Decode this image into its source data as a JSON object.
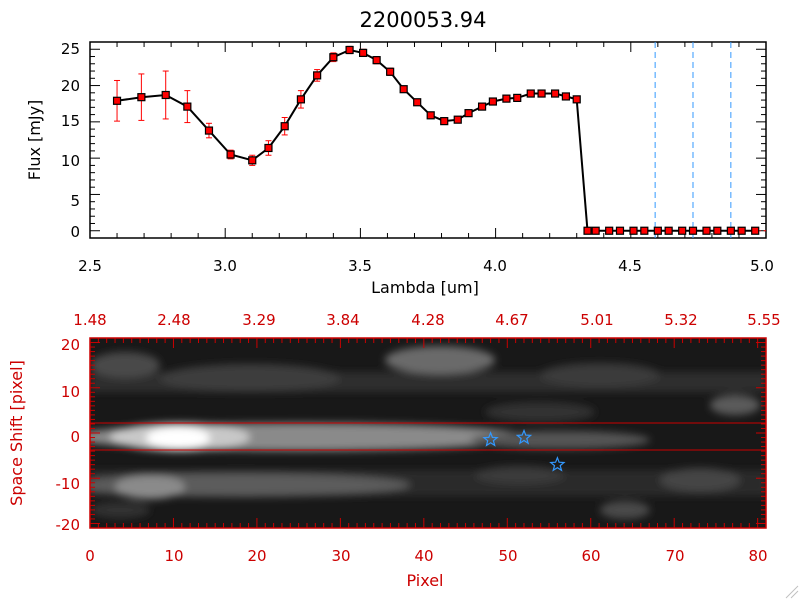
{
  "chart_data": [
    {
      "type": "line",
      "title": "2200053.94",
      "xlabel": "Lambda [um]",
      "ylabel": "Flux [mJy]",
      "xlim": [
        2.5,
        5.0
      ],
      "ylim": [
        -1,
        26
      ],
      "xticks": [
        "2.5",
        "3.0",
        "3.5",
        "4.0",
        "4.5",
        "5.0"
      ],
      "yticks": [
        "0",
        "5",
        "10",
        "15",
        "20",
        "25"
      ],
      "x": [
        2.6,
        2.69,
        2.78,
        2.86,
        2.94,
        3.02,
        3.1,
        3.16,
        3.22,
        3.28,
        3.34,
        3.4,
        3.46,
        3.51,
        3.56,
        3.61,
        3.66,
        3.71,
        3.76,
        3.81,
        3.86,
        3.9,
        3.95,
        3.99,
        4.04,
        4.08,
        4.13,
        4.17,
        4.22,
        4.26,
        4.3,
        4.34,
        4.37,
        4.42,
        4.46,
        4.51,
        4.55,
        4.6,
        4.64,
        4.69,
        4.73,
        4.78,
        4.82,
        4.87,
        4.91,
        4.96
      ],
      "y": [
        17.9,
        18.4,
        18.7,
        17.1,
        13.8,
        10.5,
        9.7,
        11.4,
        14.4,
        18.1,
        21.4,
        23.9,
        24.9,
        24.5,
        23.5,
        21.9,
        19.5,
        17.7,
        15.9,
        15.1,
        15.3,
        16.2,
        17.1,
        17.8,
        18.2,
        18.3,
        18.9,
        18.9,
        18.9,
        18.5,
        18.1,
        0.0,
        0.0,
        0.0,
        0.0,
        0.0,
        0.0,
        0.0,
        0.0,
        0.0,
        0.0,
        0.0,
        0.0,
        0.0,
        0.0,
        0.0
      ],
      "yerr": [
        2.8,
        3.2,
        3.3,
        2.2,
        1.0,
        0.6,
        0.7,
        1.0,
        1.2,
        1.2,
        0.8,
        0.6,
        0.5,
        0.5,
        0.5,
        0.5,
        0.4,
        0.4,
        0.4,
        0.4,
        0.4,
        0.4,
        0.4,
        0.4,
        0.4,
        0.4,
        0.4,
        0.4,
        0.4,
        0.4,
        0.4,
        0,
        0,
        0,
        0,
        0,
        0,
        0,
        0,
        0,
        0,
        0,
        0,
        0,
        0,
        0
      ],
      "vlines": [
        4.59,
        4.73,
        4.87
      ],
      "colors": {
        "marker": "#ff0000",
        "errorbar": "#ff0000",
        "line": "#000000",
        "vline": "#3399ff",
        "axis": "#000000"
      }
    },
    {
      "type": "heatmap",
      "xlabel": "Pixel",
      "ylabel": "Space Shift [pixel]",
      "xlim": [
        0,
        81
      ],
      "ylim": [
        -21,
        21
      ],
      "xticks": [
        "0",
        "10",
        "20",
        "30",
        "40",
        "50",
        "60",
        "70",
        "80"
      ],
      "yticks": [
        "-20",
        "-10",
        "0",
        "10",
        "20"
      ],
      "top_axis_ticks": [
        "1.48",
        "2.48",
        "3.29",
        "3.84",
        "4.28",
        "4.67",
        "5.01",
        "5.32",
        "5.55"
      ],
      "extraction_lines": [
        3,
        -3
      ],
      "stars": [
        {
          "x": 48,
          "y": -1.5
        },
        {
          "x": 52,
          "y": -1
        },
        {
          "x": 56,
          "y": -7
        }
      ],
      "colors": {
        "axis": "#cc0000",
        "extraction": "#cc0000",
        "star": "#3399ff"
      }
    }
  ]
}
